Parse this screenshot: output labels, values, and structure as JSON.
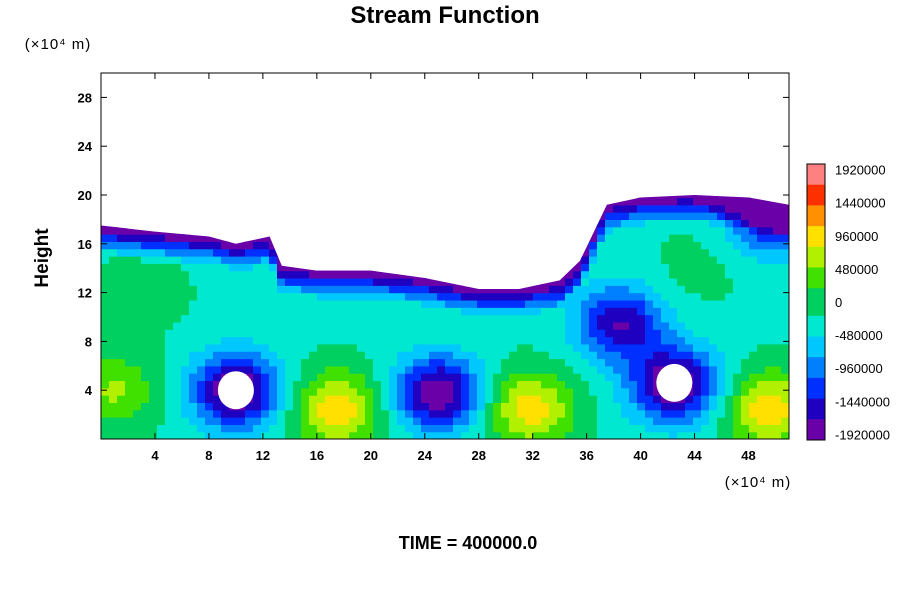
{
  "chart_data": {
    "type": "heatmap",
    "title": "Stream Function",
    "ylabel": "Height",
    "xlabel": "",
    "x_unit": "(×10⁴ m)",
    "y_unit": "(×10⁴ m)",
    "xlim": [
      0,
      51
    ],
    "ylim": [
      0,
      30
    ],
    "x_ticks": [
      "4",
      "8",
      "12",
      "16",
      "20",
      "24",
      "28",
      "32",
      "36",
      "40",
      "44",
      "48"
    ],
    "x_tick_values": [
      4,
      8,
      12,
      16,
      20,
      24,
      28,
      32,
      36,
      40,
      44,
      48
    ],
    "y_ticks": [
      "4",
      "8",
      "12",
      "16",
      "20",
      "24",
      "28"
    ],
    "y_tick_values": [
      4,
      8,
      12,
      16,
      20,
      24,
      28
    ],
    "colorbar": {
      "range": [
        -2000000,
        2000000
      ],
      "ticks": [
        "1920000",
        "1440000",
        "960000",
        "480000",
        "0",
        "-480000",
        "-960000",
        "-1440000",
        "-1920000"
      ],
      "tick_values": [
        1920000,
        1440000,
        960000,
        480000,
        0,
        -480000,
        -960000,
        -1440000,
        -1920000
      ],
      "colors": [
        "#6a00a8",
        "#2000c0",
        "#0030ff",
        "#0080ff",
        "#00c8ff",
        "#00e8d0",
        "#00d060",
        "#40e000",
        "#b0f000",
        "#ffe000",
        "#ff9000",
        "#ff3000",
        "#ff8080"
      ]
    },
    "field": {
      "background": -200000,
      "top_boundary_points": [
        [
          0,
          17.5
        ],
        [
          4,
          17.0
        ],
        [
          8,
          16.6
        ],
        [
          10,
          16.0
        ],
        [
          12.5,
          16.6
        ],
        [
          13.4,
          14.2
        ],
        [
          16,
          13.8
        ],
        [
          20,
          13.8
        ],
        [
          24,
          13.2
        ],
        [
          28,
          12.3
        ],
        [
          31,
          12.3
        ],
        [
          34,
          13.0
        ],
        [
          35.5,
          14.6
        ],
        [
          36.2,
          16.2
        ],
        [
          37.5,
          19.2
        ],
        [
          40,
          19.8
        ],
        [
          44,
          20.0
        ],
        [
          48,
          19.8
        ],
        [
          51,
          19.2
        ]
      ],
      "features": [
        {
          "x": 10.0,
          "y": 4.0,
          "value": -1900000
        },
        {
          "x": 25.0,
          "y": 3.8,
          "value": -1800000
        },
        {
          "x": 42.5,
          "y": 4.5,
          "value": -1900000
        },
        {
          "x": 17.5,
          "y": 2.5,
          "value": 1200000
        },
        {
          "x": 31.8,
          "y": 2.5,
          "value": 1150000
        },
        {
          "x": 49.5,
          "y": 2.5,
          "value": 1200000
        },
        {
          "x": 1.0,
          "y": 4.0,
          "value": 700000
        },
        {
          "x": 3.0,
          "y": 12.0,
          "value": 200000
        },
        {
          "x": 44.0,
          "y": 14.0,
          "value": 150000
        },
        {
          "x": 38.5,
          "y": 9.5,
          "value": -1500000
        },
        {
          "x": 50.0,
          "y": 18.5,
          "value": -1700000
        }
      ],
      "missing_regions": [
        {
          "x": 10.0,
          "y": 4.0
        },
        {
          "x": 42.5,
          "y": 4.6
        }
      ]
    }
  },
  "footer": {
    "time_label": "TIME = 400000.0"
  }
}
